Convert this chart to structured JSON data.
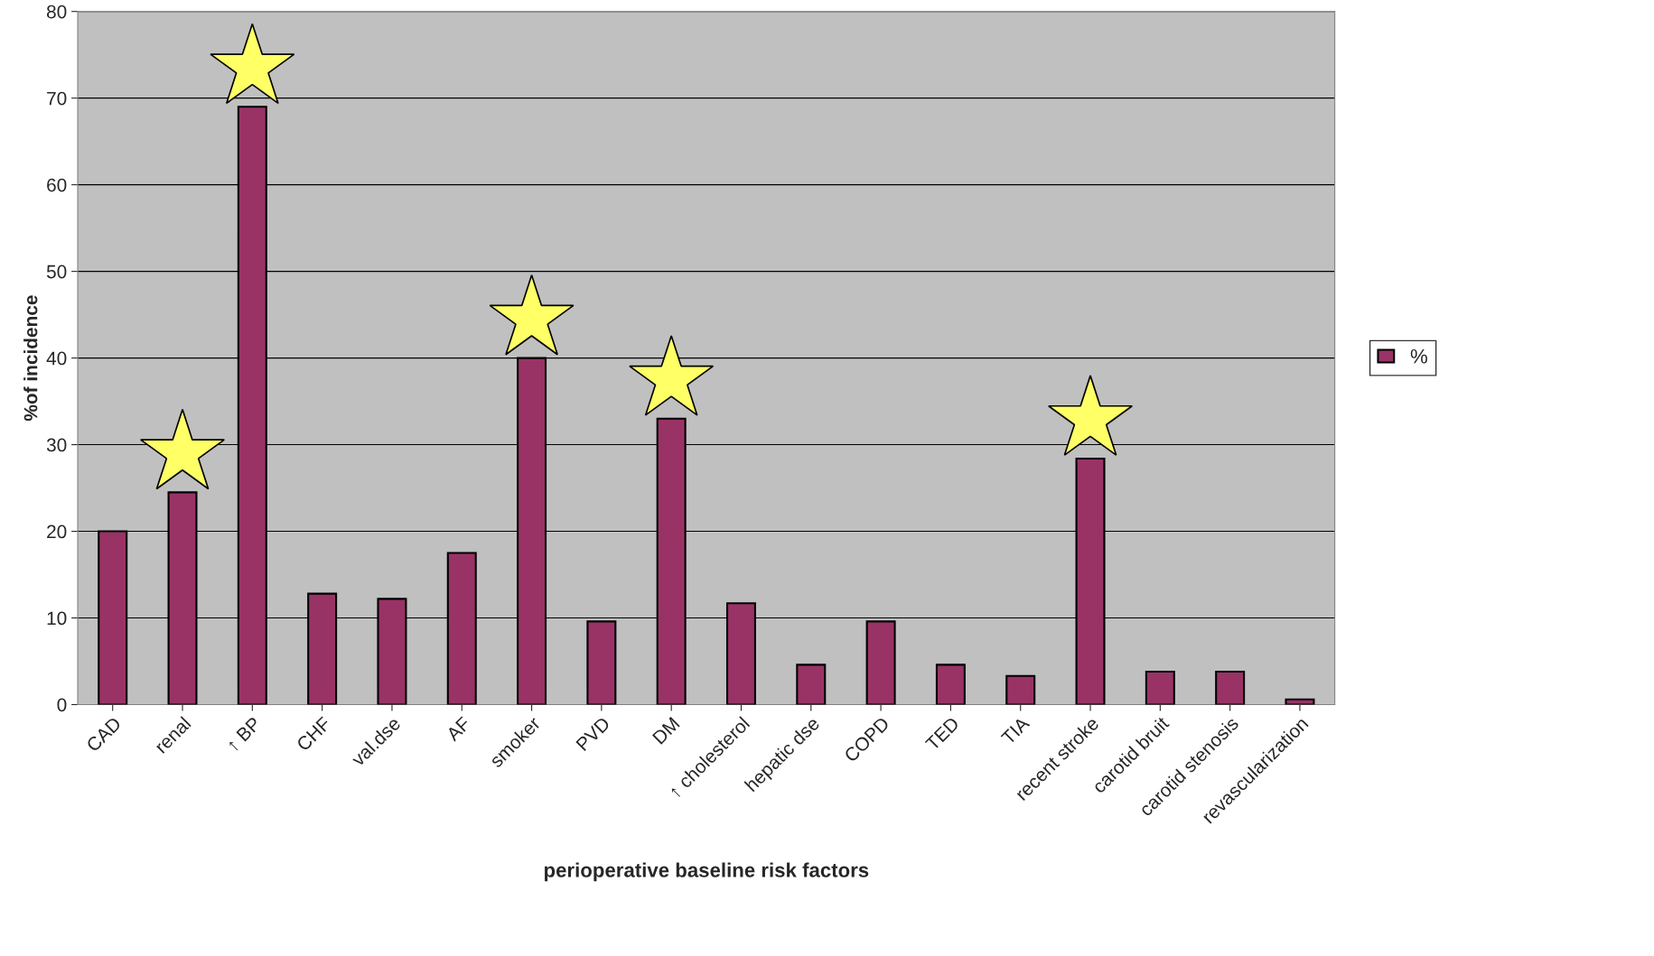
{
  "chart_data": {
    "type": "bar",
    "xlabel": "perioperative baseline risk factors",
    "ylabel": "%of incidence",
    "categories": [
      "CAD",
      "renal",
      "↑ BP",
      "CHF",
      "val.dse",
      "AF",
      "smoker",
      "PVD",
      "DM",
      "↑ cholesterol",
      "hepatic dse",
      "COPD",
      "TED",
      "TIA",
      "recent stroke",
      "carotid bruit",
      "carotid stenosis",
      "revascularization"
    ],
    "series": [
      {
        "name": "%",
        "color": "#993366",
        "values": [
          20,
          24.5,
          69,
          12.8,
          12.2,
          17.5,
          40,
          9.6,
          33,
          11.7,
          4.6,
          9.6,
          4.6,
          3.3,
          28.4,
          3.8,
          3.8,
          0.6
        ]
      }
    ],
    "ylim": [
      0,
      80
    ],
    "yticks": [
      0,
      10,
      20,
      30,
      40,
      50,
      60,
      70,
      80
    ],
    "grid": "y",
    "legend": "right"
  }
}
